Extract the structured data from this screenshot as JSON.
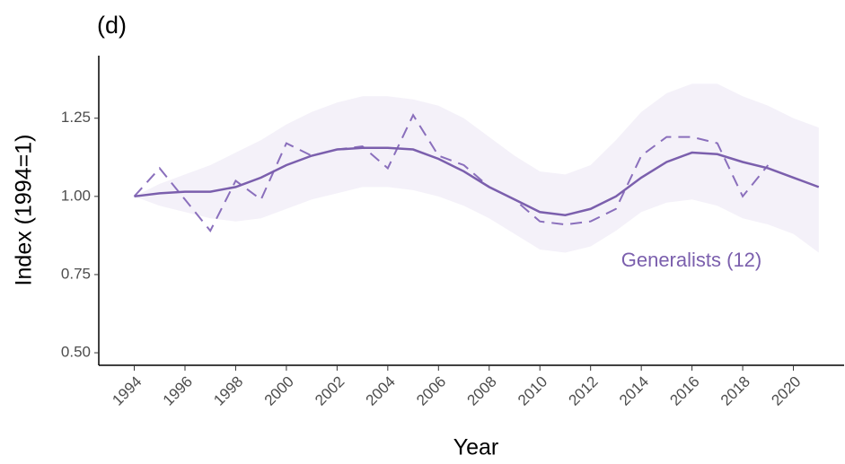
{
  "chart_data": {
    "type": "line",
    "title": "(d)",
    "x_label": "Year",
    "y_label": "Index (1994=1)",
    "annotation": "Generalists (12)",
    "x": [
      1994,
      1995,
      1996,
      1997,
      1998,
      1999,
      2000,
      2001,
      2002,
      2003,
      2004,
      2005,
      2006,
      2007,
      2008,
      2009,
      2010,
      2011,
      2012,
      2013,
      2014,
      2015,
      2016,
      2017,
      2018,
      2019,
      2020,
      2021
    ],
    "series": [
      {
        "color": "#8a6fbc",
        "dashed": true,
        "values": [
          1.0,
          1.09,
          0.99,
          0.89,
          1.05,
          0.99,
          1.17,
          1.13,
          1.15,
          1.16,
          1.09,
          1.26,
          1.13,
          1.1,
          1.03,
          0.99,
          0.92,
          0.91,
          0.92,
          0.96,
          1.13,
          1.19,
          1.19,
          1.17,
          1.0,
          1.1,
          null,
          null
        ]
      },
      {
        "color": "#7b5fad",
        "dashed": false,
        "values": [
          1.0,
          1.01,
          1.015,
          1.015,
          1.03,
          1.06,
          1.1,
          1.13,
          1.15,
          1.155,
          1.155,
          1.15,
          1.12,
          1.08,
          1.03,
          0.99,
          0.95,
          0.94,
          0.96,
          1.0,
          1.06,
          1.11,
          1.14,
          1.135,
          1.11,
          1.09,
          1.06,
          1.03
        ]
      }
    ],
    "band": {
      "color": "#f4f1f9",
      "lower": [
        1.0,
        0.97,
        0.95,
        0.93,
        0.92,
        0.93,
        0.96,
        0.99,
        1.01,
        1.03,
        1.03,
        1.02,
        1.0,
        0.97,
        0.93,
        0.88,
        0.83,
        0.82,
        0.84,
        0.89,
        0.95,
        0.98,
        0.99,
        0.97,
        0.93,
        0.91,
        0.88,
        0.82
      ],
      "upper": [
        1.0,
        1.04,
        1.07,
        1.1,
        1.14,
        1.18,
        1.23,
        1.27,
        1.3,
        1.32,
        1.32,
        1.31,
        1.29,
        1.25,
        1.19,
        1.13,
        1.08,
        1.07,
        1.1,
        1.18,
        1.27,
        1.33,
        1.36,
        1.36,
        1.32,
        1.29,
        1.25,
        1.22
      ]
    },
    "xlim": [
      1992.6,
      2022.0
    ],
    "ylim": [
      0.46,
      1.45
    ],
    "xticks": [
      1994,
      1996,
      1998,
      2000,
      2002,
      2004,
      2006,
      2008,
      2010,
      2012,
      2014,
      2016,
      2018,
      2020
    ],
    "yticks": [
      {
        "value": 0.5,
        "label": "0.50"
      },
      {
        "value": 0.75,
        "label": "0.75"
      },
      {
        "value": 1.0,
        "label": "1.00"
      },
      {
        "value": 1.25,
        "label": "1.25"
      }
    ],
    "grid": false
  }
}
